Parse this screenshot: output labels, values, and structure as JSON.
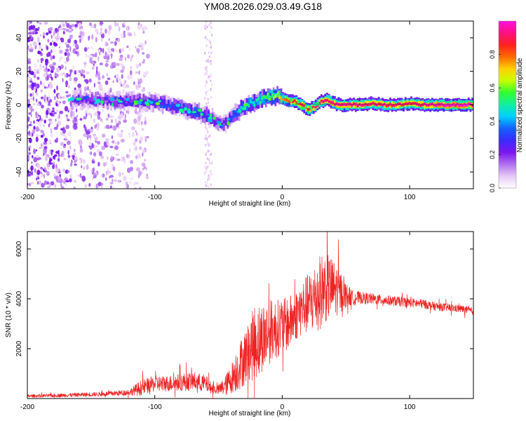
{
  "figure": {
    "title": "YM08.2026.029.03.49.G18",
    "colormap": [
      "#ffffff",
      "#e6c8f5",
      "#b070f0",
      "#7a16f0",
      "#3a2bff",
      "#1460ff",
      "#00d0ff",
      "#10f0a0",
      "#30ff30",
      "#c8ff00",
      "#ffd000",
      "#ff6a00",
      "#ff2020",
      "#ff1080",
      "#ff10e0"
    ]
  },
  "chart_data": [
    {
      "type": "heatmap",
      "name": "spectrogram",
      "title": "",
      "xlabel": "Height of straight line (km)",
      "ylabel": "Frequency (Hz)",
      "xlim": [
        -200,
        150
      ],
      "ylim": [
        -50,
        50
      ],
      "x_ticks": [
        -200,
        -100,
        0,
        100
      ],
      "y_ticks": [
        -40,
        -20,
        0,
        20,
        40
      ],
      "colorbar": {
        "label": "Normalized spectral amplitude",
        "range": [
          0,
          1
        ],
        "ticks": [
          0.0,
          0.2,
          0.4,
          0.6,
          0.8
        ]
      },
      "ridge": {
        "x": [
          -200,
          -170,
          -150,
          -130,
          -110,
          -90,
          -75,
          -65,
          -58,
          -52,
          -47,
          -42,
          -37,
          -33,
          -28,
          -20,
          -15,
          -10,
          -5,
          0,
          5,
          10,
          15,
          20,
          25,
          30,
          35,
          40,
          45,
          50,
          60,
          70,
          80,
          90,
          100,
          110,
          120,
          130,
          140,
          150
        ],
        "frequency": [
          6,
          4,
          3,
          2,
          2,
          0,
          -3,
          -5,
          -7,
          -10,
          -12,
          -9,
          -5,
          -2,
          0,
          2,
          4,
          5,
          6,
          4,
          2,
          2,
          0,
          -3,
          -1,
          2,
          3,
          1,
          0,
          0,
          0,
          1,
          0,
          0,
          1,
          0,
          0,
          0,
          0,
          0
        ],
        "amplitude": [
          0.15,
          0.2,
          0.22,
          0.25,
          0.3,
          0.32,
          0.35,
          0.35,
          0.3,
          0.25,
          0.22,
          0.3,
          0.4,
          0.45,
          0.48,
          0.5,
          0.55,
          0.6,
          0.65,
          0.8,
          0.85,
          0.88,
          0.9,
          0.88,
          0.9,
          0.92,
          0.9,
          0.93,
          0.95,
          0.95,
          0.93,
          0.9,
          0.92,
          0.9,
          0.9,
          0.92,
          0.97,
          0.98,
          0.98,
          0.98
        ]
      },
      "scatter_region": {
        "x_from": -200,
        "x_to": -105,
        "sparse_band_x": -58
      }
    },
    {
      "type": "line",
      "name": "snr",
      "title": "",
      "xlabel": "Height of straight line (km)",
      "ylabel": "SNR (10 * v/v)",
      "xlim": [
        -200,
        150
      ],
      "ylim": [
        0,
        6700
      ],
      "x_ticks": [
        -200,
        -100,
        0,
        100
      ],
      "y_ticks": [
        2000,
        4000,
        6000
      ],
      "color": "#ee2222",
      "series": [
        {
          "name": "SNR",
          "x": [
            -200,
            -180,
            -160,
            -140,
            -120,
            -112,
            -110,
            -100,
            -90,
            -80,
            -70,
            -60,
            -55,
            -50,
            -45,
            -40,
            -35,
            -30,
            -25,
            -22,
            -20,
            -15,
            -10,
            -5,
            0,
            5,
            10,
            15,
            20,
            25,
            30,
            35,
            40,
            45,
            50,
            55,
            60,
            70,
            80,
            90,
            100,
            110,
            120,
            130,
            140,
            150
          ],
          "y": [
            100,
            120,
            150,
            180,
            250,
            400,
            450,
            600,
            600,
            650,
            700,
            600,
            400,
            350,
            500,
            800,
            1200,
            1600,
            2000,
            2200,
            2300,
            2500,
            2700,
            2800,
            2900,
            3000,
            3300,
            3600,
            3800,
            4000,
            4300,
            4500,
            4400,
            4300,
            4150,
            4050,
            4050,
            4000,
            3950,
            3900,
            3850,
            3800,
            3700,
            3650,
            3600,
            3500
          ],
          "noise": [
            60,
            70,
            80,
            90,
            120,
            300,
            300,
            320,
            320,
            350,
            380,
            350,
            200,
            200,
            400,
            600,
            900,
            1100,
            1200,
            1600,
            1500,
            1400,
            1300,
            1200,
            1100,
            1100,
            1000,
            1100,
            1200,
            1400,
            1500,
            1400,
            1200,
            900,
            500,
            300,
            250,
            220,
            200,
            200,
            190,
            180,
            170,
            160,
            150,
            150
          ]
        }
      ]
    }
  ]
}
